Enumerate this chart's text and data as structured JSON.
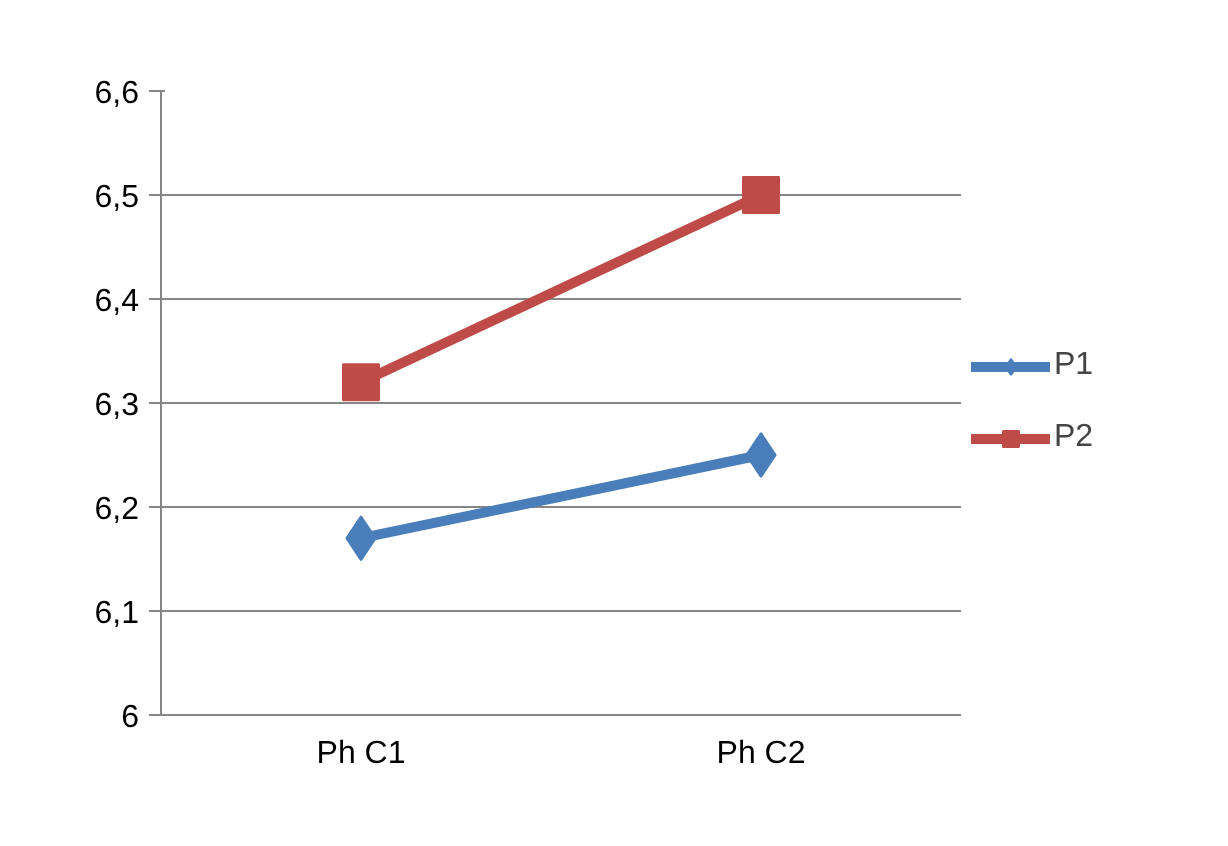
{
  "chart_data": {
    "type": "line",
    "categories": [
      "Ph C1",
      "Ph C2"
    ],
    "series": [
      {
        "name": "P1",
        "color": "#4a7ebb",
        "values": [
          6.17,
          6.25
        ],
        "marker": "diamond"
      },
      {
        "name": "P2",
        "color": "#be4b48",
        "values": [
          6.32,
          6.5
        ],
        "marker": "square"
      }
    ],
    "ylim": [
      6,
      6.6
    ],
    "yticks": [
      6,
      {
        "value": 6.1,
        "label": "6,1"
      },
      {
        "value": 6.2,
        "label": "6,2"
      },
      {
        "value": 6.3,
        "label": "6,3"
      },
      {
        "value": 6.4,
        "label": "6,4"
      },
      {
        "value": 6.5,
        "label": "6,5"
      },
      {
        "value": 6.6,
        "label": "6,6"
      }
    ],
    "grid": "y",
    "legend": "right",
    "line_style": "solid"
  }
}
